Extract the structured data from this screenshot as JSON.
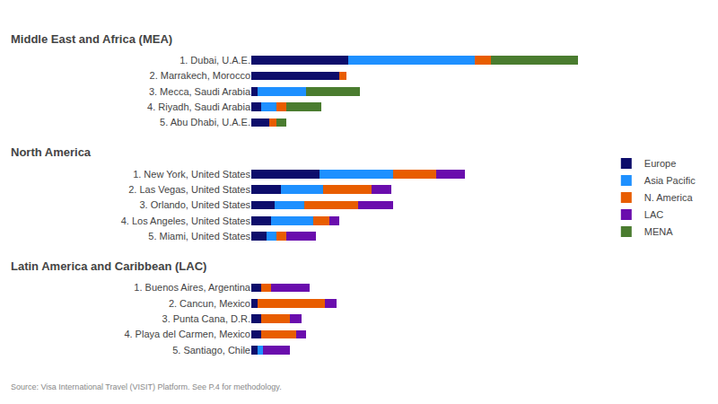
{
  "chart_data": [
    {
      "type": "bar",
      "orientation": "horizontal",
      "stacked": true,
      "grid": false,
      "tick_labels": "y",
      "legend": "right",
      "title": "Middle East and Africa (MEA)",
      "categories": [
        "1. Dubai, U.A.E.",
        "2. Marrakech, Morocco",
        "3. Mecca, Saudi Arabia",
        "4. Riyadh, Saudi Arabia",
        "5. Abu Dhabi, U.A.E."
      ],
      "xlim": [
        0,
        18
      ],
      "series": [
        {
          "name": "Europe",
          "color": "#0d0d6b",
          "values": [
            5.0,
            4.5,
            0.3,
            0.5,
            0.9
          ]
        },
        {
          "name": "Asia Pacific",
          "color": "#1e90ff",
          "values": [
            6.5,
            0.0,
            2.5,
            0.8,
            0.0
          ]
        },
        {
          "name": "N. America",
          "color": "#e85d00",
          "values": [
            0.8,
            0.4,
            0.0,
            0.5,
            0.4
          ]
        },
        {
          "name": "LAC",
          "color": "#6a0dad",
          "values": [
            0.0,
            0.0,
            0.0,
            0.0,
            0.0
          ]
        },
        {
          "name": "MENA",
          "color": "#4a7c2f",
          "values": [
            4.5,
            0.0,
            2.8,
            1.8,
            0.5
          ]
        }
      ]
    },
    {
      "type": "bar",
      "orientation": "horizontal",
      "stacked": true,
      "grid": false,
      "tick_labels": "y",
      "title": "North America",
      "categories": [
        "1. New York, United States",
        "2. Las Vegas, United States",
        "3. Orlando, United States",
        "4. Los Angeles, United States",
        "5. Miami, United States"
      ],
      "xlim": [
        0,
        18
      ],
      "series": [
        {
          "name": "Europe",
          "color": "#0d0d6b",
          "values": [
            3.5,
            1.5,
            1.2,
            1.0,
            0.8
          ]
        },
        {
          "name": "Asia Pacific",
          "color": "#1e90ff",
          "values": [
            3.8,
            2.2,
            1.5,
            2.2,
            0.5
          ]
        },
        {
          "name": "N. America",
          "color": "#e85d00",
          "values": [
            2.2,
            2.5,
            2.8,
            0.8,
            0.5
          ]
        },
        {
          "name": "LAC",
          "color": "#6a0dad",
          "values": [
            1.5,
            1.0,
            1.8,
            0.5,
            1.5
          ]
        },
        {
          "name": "MENA",
          "color": "#4a7c2f",
          "values": [
            0.0,
            0.0,
            0.0,
            0.0,
            0.0
          ]
        }
      ]
    },
    {
      "type": "bar",
      "orientation": "horizontal",
      "stacked": true,
      "grid": false,
      "tick_labels": "y",
      "title": "Latin America and Caribbean (LAC)",
      "categories": [
        "1. Buenos Aires, Argentina",
        "2. Cancun, Mexico",
        "3. Punta Cana, D.R.",
        "4. Playa del Carmen, Mexico",
        "5. Santiago, Chile"
      ],
      "xlim": [
        0,
        18
      ],
      "annotations": [
        "Source: Visa International Travel (VISIT) Platform. See P.4 for methodology."
      ],
      "series": [
        {
          "name": "Europe",
          "color": "#0d0d6b",
          "values": [
            0.5,
            0.3,
            0.5,
            0.5,
            0.3
          ]
        },
        {
          "name": "Asia Pacific",
          "color": "#1e90ff",
          "values": [
            0.0,
            0.0,
            0.0,
            0.0,
            0.3
          ]
        },
        {
          "name": "N. America",
          "color": "#e85d00",
          "values": [
            0.5,
            3.5,
            1.5,
            1.8,
            0.0
          ]
        },
        {
          "name": "LAC",
          "color": "#6a0dad",
          "values": [
            2.0,
            0.6,
            0.6,
            0.5,
            1.4
          ]
        },
        {
          "name": "MENA",
          "color": "#4a7c2f",
          "values": [
            0.0,
            0.0,
            0.0,
            0.0,
            0.0
          ]
        }
      ]
    }
  ]
}
